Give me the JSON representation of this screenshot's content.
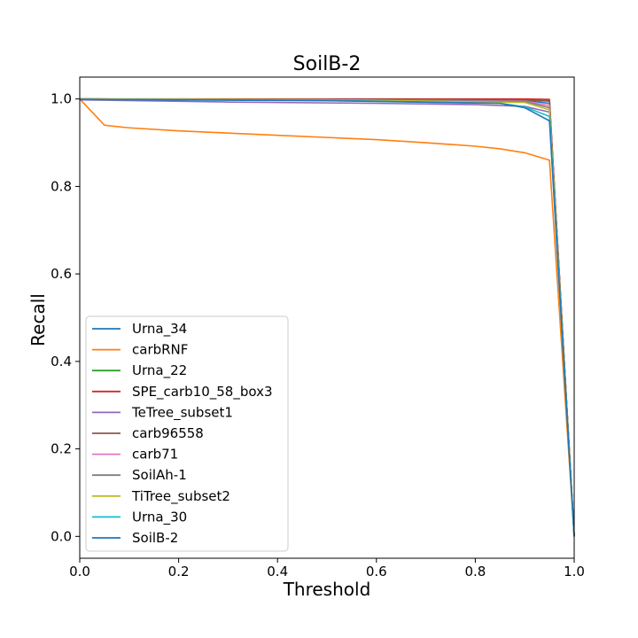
{
  "chart_data": {
    "type": "line",
    "title": "SoilB-2",
    "xlabel": "Threshold",
    "ylabel": "Recall",
    "xlim": [
      0.0,
      1.0
    ],
    "ylim": [
      -0.05,
      1.05
    ],
    "xticks": [
      "0.0",
      "0.2",
      "0.4",
      "0.6",
      "0.8",
      "1.0"
    ],
    "yticks": [
      "0.0",
      "0.2",
      "0.4",
      "0.6",
      "0.8",
      "1.0"
    ],
    "grid": false,
    "legend_position": "lower-left",
    "series": [
      {
        "name": "Urna_34",
        "color": "#1f77b4",
        "points": [
          [
            0.0,
            1.0
          ],
          [
            0.5,
            0.999
          ],
          [
            0.9,
            0.997
          ],
          [
            0.95,
            0.99
          ],
          [
            1.0,
            0.0
          ]
        ]
      },
      {
        "name": "carbRNF",
        "color": "#ff7f0e",
        "points": [
          [
            0.0,
            1.0
          ],
          [
            0.05,
            0.94
          ],
          [
            0.1,
            0.934
          ],
          [
            0.2,
            0.927
          ],
          [
            0.3,
            0.922
          ],
          [
            0.4,
            0.917
          ],
          [
            0.5,
            0.912
          ],
          [
            0.6,
            0.907
          ],
          [
            0.7,
            0.9
          ],
          [
            0.8,
            0.892
          ],
          [
            0.85,
            0.886
          ],
          [
            0.9,
            0.877
          ],
          [
            0.95,
            0.86
          ],
          [
            1.0,
            0.0
          ]
        ]
      },
      {
        "name": "Urna_22",
        "color": "#2ca02c",
        "points": [
          [
            0.0,
            1.0
          ],
          [
            0.5,
            0.999
          ],
          [
            0.9,
            0.998
          ],
          [
            0.95,
            0.995
          ],
          [
            1.0,
            0.0
          ]
        ]
      },
      {
        "name": "SPE_carb10_58_box3",
        "color": "#d62728",
        "points": [
          [
            0.0,
            1.0
          ],
          [
            0.5,
            1.0
          ],
          [
            0.9,
            1.0
          ],
          [
            0.95,
            0.999
          ],
          [
            1.0,
            0.0
          ]
        ]
      },
      {
        "name": "TeTree_subset1",
        "color": "#9467bd",
        "points": [
          [
            0.0,
            0.998
          ],
          [
            0.3,
            0.993
          ],
          [
            0.6,
            0.99
          ],
          [
            0.8,
            0.987
          ],
          [
            0.9,
            0.983
          ],
          [
            0.95,
            0.97
          ],
          [
            1.0,
            0.0
          ]
        ]
      },
      {
        "name": "carb96558",
        "color": "#8c564b",
        "points": [
          [
            0.0,
            1.0
          ],
          [
            0.5,
            0.999
          ],
          [
            0.9,
            0.998
          ],
          [
            0.95,
            0.996
          ],
          [
            1.0,
            0.0
          ]
        ]
      },
      {
        "name": "carb71",
        "color": "#e377c2",
        "points": [
          [
            0.0,
            1.0
          ],
          [
            0.5,
            0.998
          ],
          [
            0.9,
            0.995
          ],
          [
            0.95,
            0.985
          ],
          [
            1.0,
            0.0
          ]
        ]
      },
      {
        "name": "SoilAh-1",
        "color": "#7f7f7f",
        "points": [
          [
            0.0,
            1.0
          ],
          [
            0.5,
            0.998
          ],
          [
            0.9,
            0.994
          ],
          [
            0.95,
            0.98
          ],
          [
            1.0,
            0.0
          ]
        ]
      },
      {
        "name": "TiTree_subset2",
        "color": "#bcbd22",
        "points": [
          [
            0.0,
            1.0
          ],
          [
            0.5,
            0.998
          ],
          [
            0.9,
            0.992
          ],
          [
            0.95,
            0.975
          ],
          [
            1.0,
            0.0
          ]
        ]
      },
      {
        "name": "Urna_30",
        "color": "#17becf",
        "points": [
          [
            0.0,
            0.999
          ],
          [
            0.5,
            0.997
          ],
          [
            0.85,
            0.99
          ],
          [
            0.9,
            0.982
          ],
          [
            0.95,
            0.96
          ],
          [
            1.0,
            0.0
          ]
        ]
      },
      {
        "name": "SoilB-2",
        "color": "#1f77b4",
        "points": [
          [
            0.0,
            0.999
          ],
          [
            0.5,
            0.996
          ],
          [
            0.85,
            0.99
          ],
          [
            0.9,
            0.98
          ],
          [
            0.95,
            0.95
          ],
          [
            1.0,
            0.0
          ]
        ]
      }
    ]
  }
}
